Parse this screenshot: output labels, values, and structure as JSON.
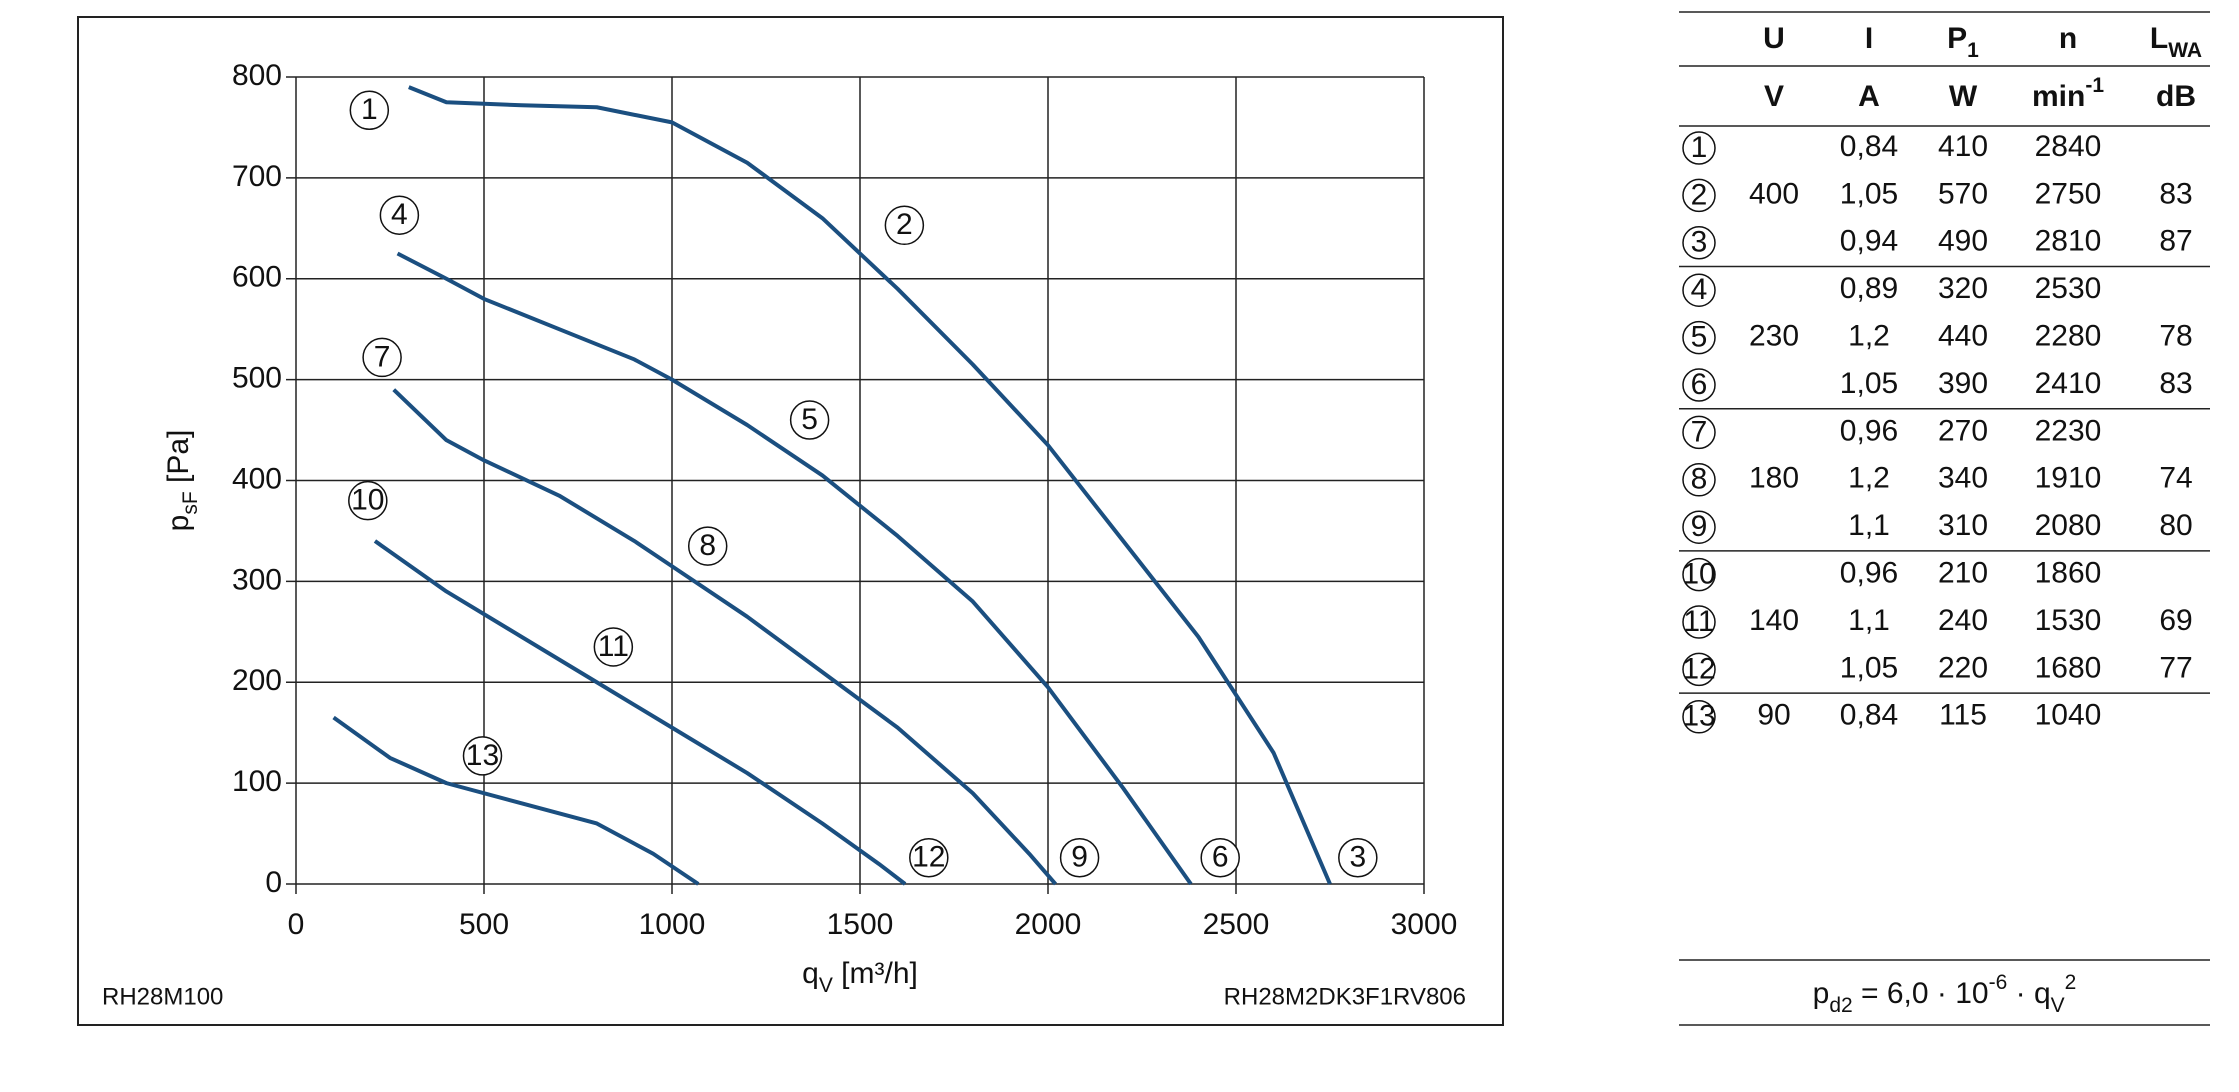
{
  "chart_data": {
    "type": "line",
    "xlabel": {
      "text": "q",
      "sub": "V",
      "unit": " [m³/h]"
    },
    "ylabel": {
      "text": "p",
      "sub": "sF",
      "unit": " [Pa]"
    },
    "xlim": [
      0,
      3000
    ],
    "xticks": [
      0,
      500,
      1000,
      1500,
      2000,
      2500,
      3000
    ],
    "ylim": [
      0,
      800
    ],
    "yticks": [
      0,
      100,
      200,
      300,
      400,
      500,
      600,
      700,
      800
    ],
    "grid": true,
    "series": [
      {
        "color": "#1b4f80",
        "x": [
          300,
          400,
          600,
          800,
          1000,
          1200,
          1400,
          1600,
          1800,
          2000,
          2200,
          2400,
          2600,
          2750
        ],
        "values": [
          790,
          775,
          772,
          770,
          755,
          715,
          660,
          590,
          515,
          435,
          340,
          245,
          130,
          0
        ]
      },
      {
        "color": "#1b4f80",
        "x": [
          270,
          400,
          500,
          700,
          900,
          1000,
          1200,
          1400,
          1600,
          1800,
          2000,
          2200,
          2380
        ],
        "values": [
          625,
          600,
          580,
          550,
          520,
          500,
          455,
          405,
          345,
          280,
          195,
          95,
          0
        ]
      },
      {
        "color": "#1b4f80",
        "x": [
          260,
          400,
          500,
          700,
          900,
          1000,
          1200,
          1400,
          1600,
          1800,
          1950,
          2020
        ],
        "values": [
          490,
          440,
          420,
          385,
          340,
          315,
          265,
          210,
          155,
          90,
          30,
          0
        ]
      },
      {
        "color": "#1b4f80",
        "x": [
          210,
          400,
          600,
          800,
          1000,
          1200,
          1400,
          1550,
          1620
        ],
        "values": [
          340,
          290,
          245,
          200,
          155,
          110,
          60,
          20,
          0
        ]
      },
      {
        "color": "#1b4f80",
        "x": [
          100,
          250,
          400,
          600,
          800,
          950,
          1070
        ],
        "values": [
          165,
          125,
          100,
          80,
          60,
          30,
          0
        ]
      }
    ],
    "annotations": [
      {
        "text": "1",
        "x": 195,
        "y": 767
      },
      {
        "text": "2",
        "x": 1618,
        "y": 653
      },
      {
        "text": "3",
        "x": 2824,
        "y": 26
      },
      {
        "text": "4",
        "x": 275,
        "y": 663
      },
      {
        "text": "5",
        "x": 1366,
        "y": 460
      },
      {
        "text": "6",
        "x": 2458,
        "y": 26
      },
      {
        "text": "7",
        "x": 229,
        "y": 522
      },
      {
        "text": "8",
        "x": 1095,
        "y": 335
      },
      {
        "text": "9",
        "x": 2084,
        "y": 26
      },
      {
        "text": "10",
        "x": 191,
        "y": 380
      },
      {
        "text": "11",
        "x": 844,
        "y": 235
      },
      {
        "text": "12",
        "x": 1683,
        "y": 26
      },
      {
        "text": "13",
        "x": 496,
        "y": 127
      }
    ],
    "footer_left": "RH28M100",
    "footer_right": "RH28M2DK3F1RV806"
  },
  "table": {
    "header": [
      [
        {
          "text": "U"
        },
        {
          "text": "I"
        },
        {
          "text": "P",
          "sub": "1"
        },
        {
          "text": "n"
        },
        {
          "text": "L",
          "sub": "WA"
        }
      ],
      [
        {
          "text": "V"
        },
        {
          "text": "A"
        },
        {
          "text": "W"
        },
        {
          "text": "min",
          "sup": "-1"
        },
        {
          "text": "dB"
        }
      ]
    ],
    "groups": [
      {
        "u": "400",
        "rows": [
          [
            "1",
            "0,84",
            "410",
            "2840",
            null
          ],
          [
            "2",
            "1,05",
            "570",
            "2750",
            "83"
          ],
          [
            "3",
            "0,94",
            "490",
            "2810",
            "87"
          ]
        ]
      },
      {
        "u": "230",
        "rows": [
          [
            "4",
            "0,89",
            "320",
            "2530",
            null
          ],
          [
            "5",
            "1,2",
            "440",
            "2280",
            "78"
          ],
          [
            "6",
            "1,05",
            "390",
            "2410",
            "83"
          ]
        ]
      },
      {
        "u": "180",
        "rows": [
          [
            "7",
            "0,96",
            "270",
            "2230",
            null
          ],
          [
            "8",
            "1,2",
            "340",
            "1910",
            "74"
          ],
          [
            "9",
            "1,1",
            "310",
            "2080",
            "80"
          ]
        ]
      },
      {
        "u": "140",
        "rows": [
          [
            "10",
            "0,96",
            "210",
            "1860",
            null
          ],
          [
            "11",
            "1,1",
            "240",
            "1530",
            "69"
          ],
          [
            "12",
            "1,05",
            "220",
            "1680",
            "77"
          ]
        ]
      },
      {
        "u": "90",
        "rows": [
          [
            "13",
            "0,84",
            "115",
            "1040",
            null
          ]
        ]
      }
    ],
    "formula": [
      {
        "text": "p",
        "sub": "d2"
      },
      {
        "text": " = 6,0 · 10",
        "sup": "-6"
      },
      {
        "text": " · q",
        "sub": "V",
        "sup": "2"
      }
    ]
  }
}
